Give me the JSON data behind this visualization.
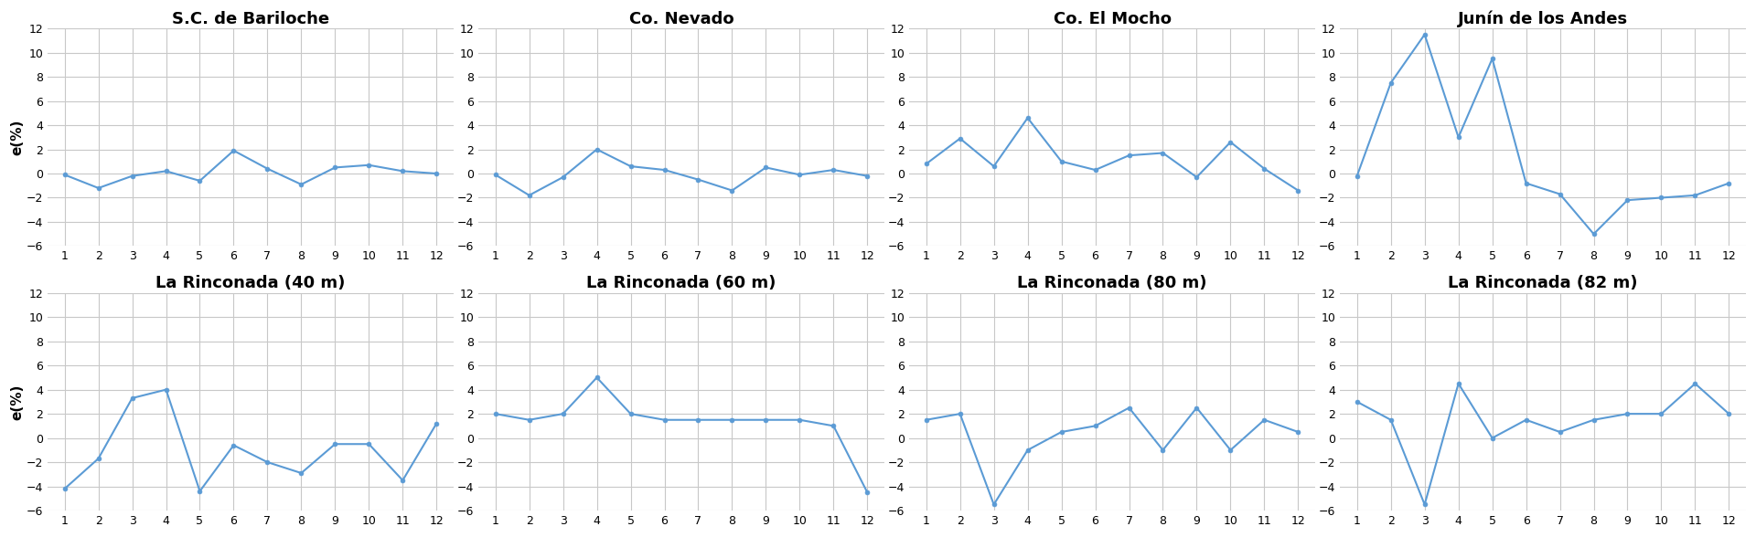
{
  "panels": [
    {
      "title": "S.C. de Bariloche",
      "values": [
        -0.1,
        -1.2,
        -0.2,
        0.2,
        -0.6,
        1.9,
        0.4,
        -0.9,
        0.5,
        0.7,
        0.2,
        0.0
      ],
      "row": 0,
      "col": 0
    },
    {
      "title": "Co. Nevado",
      "values": [
        -0.1,
        -1.8,
        -0.3,
        2.0,
        0.6,
        0.3,
        -0.5,
        -1.4,
        0.5,
        -0.1,
        0.3,
        -0.2
      ],
      "row": 0,
      "col": 1
    },
    {
      "title": "Co. El Mocho",
      "values": [
        0.8,
        2.9,
        0.6,
        4.6,
        1.0,
        0.3,
        1.5,
        1.7,
        -0.3,
        2.6,
        0.4,
        -1.4
      ],
      "row": 0,
      "col": 2
    },
    {
      "title": "Junín de los Andes",
      "values": [
        -0.2,
        7.5,
        11.5,
        3.0,
        9.5,
        -0.8,
        -1.7,
        -5.0,
        -2.2,
        -2.0,
        -1.8,
        -0.8
      ],
      "row": 0,
      "col": 3
    },
    {
      "title": "La Rinconada (40 m)",
      "values": [
        -4.2,
        -1.7,
        3.3,
        4.0,
        -4.4,
        -0.6,
        -2.0,
        -2.9,
        -0.5,
        -0.5,
        -3.5,
        1.2
      ],
      "row": 1,
      "col": 0
    },
    {
      "title": "La Rinconada (60 m)",
      "values": [
        2.0,
        1.5,
        2.0,
        5.0,
        2.0,
        1.5,
        1.5,
        1.5,
        1.5,
        1.5,
        1.0,
        -4.5
      ],
      "row": 1,
      "col": 1
    },
    {
      "title": "La Rinconada (80 m)",
      "values": [
        1.5,
        2.0,
        -5.5,
        -1.0,
        0.5,
        1.0,
        2.5,
        -1.0,
        2.5,
        -1.0,
        1.5,
        0.5
      ],
      "row": 1,
      "col": 2
    },
    {
      "title": "La Rinconada (82 m)",
      "values": [
        3.0,
        1.5,
        -5.5,
        4.5,
        0.0,
        1.5,
        0.5,
        1.5,
        2.0,
        2.0,
        4.5,
        2.0
      ],
      "row": 1,
      "col": 3
    }
  ],
  "ylim": [
    -6,
    12
  ],
  "yticks": [
    -6,
    -4,
    -2,
    0,
    2,
    4,
    6,
    8,
    10,
    12
  ],
  "xticks": [
    1,
    2,
    3,
    4,
    5,
    6,
    7,
    8,
    9,
    10,
    11,
    12
  ],
  "line_color": "#5b9bd5",
  "marker_color": "#5b9bd5",
  "marker": "o",
  "marker_size": 3.5,
  "line_width": 1.5,
  "ylabel": "e(%)",
  "grid_color": "#c8c8c8",
  "title_fontsize": 13,
  "tick_fontsize": 9,
  "ylabel_fontsize": 11,
  "bg_color": "#ffffff"
}
